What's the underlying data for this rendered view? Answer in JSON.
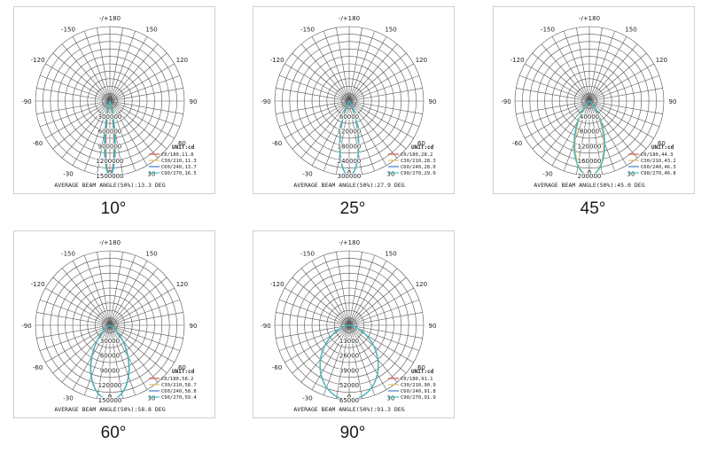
{
  "chart_data": [
    {
      "type": "polar",
      "caption": "10°",
      "angle_labels": [
        "-/+180",
        "-150",
        "150",
        "-120",
        "120",
        "-90",
        "90",
        "-60",
        "60",
        "-30",
        "30",
        "0"
      ],
      "ring_labels": [
        "300000",
        "600000",
        "900000",
        "1200000",
        "1500000"
      ],
      "rmax": 1500000,
      "unit_label": "UNIT:cd",
      "peak_cd": 1500000,
      "series": [
        {
          "name": "C0/180,11.8",
          "color": "#d9534f",
          "beam_angle": 11.8
        },
        {
          "name": "C30/210,11.3",
          "color": "#e0c070",
          "beam_angle": 11.3
        },
        {
          "name": "C60/240,13.7",
          "color": "#4a78c8",
          "beam_angle": 13.7
        },
        {
          "name": "C90/270,16.5",
          "color": "#39c2c2",
          "beam_angle": 16.5
        }
      ],
      "footer": "AVERAGE BEAM ANGLE(50%):13.3 DEG"
    },
    {
      "type": "polar",
      "caption": "25°",
      "angle_labels": [
        "-/+180",
        "-150",
        "150",
        "-120",
        "120",
        "-90",
        "90",
        "-60",
        "60",
        "-30",
        "30",
        "0"
      ],
      "ring_labels": [
        "60000",
        "120000",
        "180000",
        "240000",
        "300000"
      ],
      "rmax": 300000,
      "unit_label": "UNIT:cd",
      "peak_cd": 300000,
      "series": [
        {
          "name": "C0/180,28.2",
          "color": "#d9534f",
          "beam_angle": 28.2
        },
        {
          "name": "C30/210,28.3",
          "color": "#e0c070",
          "beam_angle": 28.3
        },
        {
          "name": "C60/240,28.0",
          "color": "#4a78c8",
          "beam_angle": 28.0
        },
        {
          "name": "C90/270,29.0",
          "color": "#39c2c2",
          "beam_angle": 29.0
        }
      ],
      "footer": "AVERAGE BEAM ANGLE(50%):27.9 DEG"
    },
    {
      "type": "polar",
      "caption": "45°",
      "angle_labels": [
        "-/+180",
        "-150",
        "150",
        "-120",
        "120",
        "-90",
        "90",
        "-60",
        "60",
        "-30",
        "30",
        "0"
      ],
      "ring_labels": [
        "40000",
        "80000",
        "120000",
        "160000",
        "200000"
      ],
      "rmax": 200000,
      "unit_label": "UNIT:cd",
      "peak_cd": 200000,
      "series": [
        {
          "name": "C0/180,44.3",
          "color": "#d9534f",
          "beam_angle": 44.3
        },
        {
          "name": "C30/210,43.2",
          "color": "#e0c070",
          "beam_angle": 43.2
        },
        {
          "name": "C60/240,46.3",
          "color": "#4a78c8",
          "beam_angle": 46.3
        },
        {
          "name": "C90/270,46.8",
          "color": "#39c2c2",
          "beam_angle": 46.8
        }
      ],
      "footer": "AVERAGE BEAM ANGLE(50%):45.0 DEG"
    },
    {
      "type": "polar",
      "caption": "60°",
      "angle_labels": [
        "-/+180",
        "-150",
        "150",
        "-120",
        "120",
        "-90",
        "90",
        "-60",
        "60",
        "-30",
        "30",
        "0"
      ],
      "ring_labels": [
        "30000",
        "60000",
        "90000",
        "120000",
        "150000"
      ],
      "rmax": 150000,
      "unit_label": "UNIT:cd",
      "peak_cd": 150000,
      "series": [
        {
          "name": "C0/180,58.2",
          "color": "#d9534f",
          "beam_angle": 58.2
        },
        {
          "name": "C30/210,58.7",
          "color": "#e0c070",
          "beam_angle": 58.7
        },
        {
          "name": "C60/240,58.8",
          "color": "#4a78c8",
          "beam_angle": 58.8
        },
        {
          "name": "C90/270,59.4",
          "color": "#39c2c2",
          "beam_angle": 59.4
        }
      ],
      "footer": "AVERAGE BEAM ANGLE(50%):58.8 DEG"
    },
    {
      "type": "polar",
      "caption": "90°",
      "angle_labels": [
        "-/+180",
        "-150",
        "150",
        "-120",
        "120",
        "-90",
        "90",
        "-60",
        "60",
        "-30",
        "30",
        "0"
      ],
      "ring_labels": [
        "13000",
        "26000",
        "39000",
        "52000",
        "65000"
      ],
      "rmax": 65000,
      "unit_label": "UNIT:cd",
      "peak_cd": 65000,
      "series": [
        {
          "name": "C0/180,91.1",
          "color": "#d9534f",
          "beam_angle": 91.1
        },
        {
          "name": "C30/210,90.9",
          "color": "#e0c070",
          "beam_angle": 90.9
        },
        {
          "name": "C60/240,91.8",
          "color": "#4a78c8",
          "beam_angle": 91.8
        },
        {
          "name": "C90/270,91.9",
          "color": "#39c2c2",
          "beam_angle": 91.9
        }
      ],
      "footer": "AVERAGE BEAM ANGLE(50%):91.3 DEG"
    }
  ]
}
